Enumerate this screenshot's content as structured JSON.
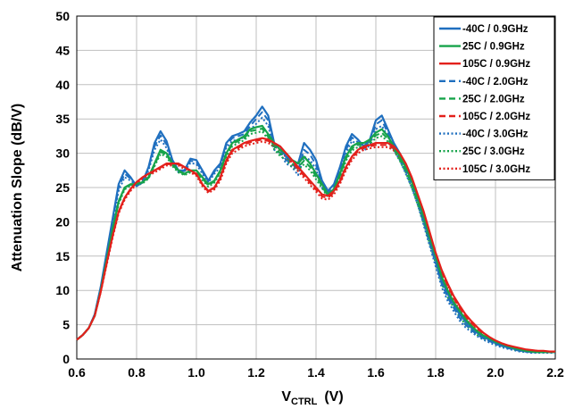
{
  "chart_data": {
    "type": "line",
    "title": "",
    "xlabel": "V",
    "xlabel_sub": "CTRL",
    "xlabel_unit": "(V)",
    "ylabel": "Attenuation Slope  (dB/V)",
    "xlim": [
      0.6,
      2.2
    ],
    "ylim": [
      0,
      50
    ],
    "x_ticks": [
      "0.6",
      "0.8",
      "1.0",
      "1.2",
      "1.4",
      "1.6",
      "1.8",
      "2.0",
      "2.2"
    ],
    "y_ticks": [
      "0",
      "5",
      "10",
      "15",
      "20",
      "25",
      "30",
      "35",
      "40",
      "45",
      "50"
    ],
    "grid": true,
    "legend_position": "top-right",
    "colors": {
      "m40": "#1f6fbf",
      "p25": "#16a34a",
      "p105": "#e3201b"
    },
    "x": [
      0.6,
      0.62,
      0.64,
      0.66,
      0.68,
      0.7,
      0.72,
      0.74,
      0.76,
      0.78,
      0.8,
      0.82,
      0.84,
      0.86,
      0.88,
      0.9,
      0.92,
      0.94,
      0.96,
      0.98,
      1.0,
      1.02,
      1.04,
      1.06,
      1.08,
      1.1,
      1.12,
      1.14,
      1.16,
      1.18,
      1.2,
      1.22,
      1.24,
      1.26,
      1.28,
      1.3,
      1.32,
      1.34,
      1.36,
      1.38,
      1.4,
      1.42,
      1.44,
      1.46,
      1.48,
      1.5,
      1.52,
      1.54,
      1.56,
      1.58,
      1.6,
      1.62,
      1.64,
      1.66,
      1.68,
      1.7,
      1.72,
      1.74,
      1.76,
      1.78,
      1.8,
      1.82,
      1.84,
      1.86,
      1.88,
      1.9,
      1.92,
      1.94,
      1.96,
      1.98,
      2.0,
      2.02,
      2.04,
      2.06,
      2.08,
      2.1,
      2.12,
      2.14,
      2.16,
      2.18,
      2.2
    ],
    "series": [
      {
        "name": "-40C /  0.9GHz",
        "color_key": "m40",
        "dash": "solid",
        "values": [
          2.8,
          3.5,
          4.5,
          6.5,
          10.5,
          15.5,
          20.5,
          25.5,
          27.5,
          26.5,
          25.2,
          25.8,
          28.0,
          31.5,
          33.2,
          31.8,
          29.0,
          27.5,
          27.5,
          29.2,
          29.0,
          27.5,
          26.0,
          27.5,
          28.5,
          31.5,
          32.5,
          32.8,
          33.2,
          34.5,
          35.5,
          36.8,
          35.5,
          31.5,
          31.0,
          29.5,
          29.0,
          28.5,
          31.5,
          30.5,
          29.0,
          26.0,
          24.5,
          25.5,
          28.0,
          31.0,
          32.8,
          32.0,
          31.0,
          32.0,
          34.8,
          35.5,
          33.5,
          31.5,
          30.0,
          28.0,
          26.0,
          23.5,
          20.5,
          17.5,
          14.5,
          11.5,
          9.5,
          8.0,
          6.5,
          5.5,
          4.5,
          3.8,
          3.2,
          2.8,
          2.3,
          2.0,
          1.7,
          1.5,
          1.3,
          1.1,
          1.0,
          1.0,
          1.0,
          1.0,
          1.0
        ]
      },
      {
        "name": "25C /  0.9GHz",
        "color_key": "p25",
        "dash": "solid",
        "values": [
          2.8,
          3.5,
          4.5,
          6.3,
          10.0,
          14.5,
          19.0,
          23.0,
          25.0,
          25.5,
          25.5,
          25.8,
          26.5,
          28.5,
          30.5,
          30.0,
          28.5,
          27.5,
          27.0,
          27.5,
          27.5,
          26.5,
          25.5,
          26.0,
          27.5,
          30.0,
          31.5,
          32.0,
          32.5,
          33.5,
          33.8,
          34.0,
          32.8,
          31.5,
          30.5,
          30.0,
          29.0,
          28.5,
          29.5,
          28.5,
          27.0,
          25.5,
          24.0,
          24.8,
          27.0,
          29.5,
          31.0,
          31.5,
          31.5,
          32.0,
          33.0,
          33.5,
          32.5,
          31.0,
          29.5,
          28.0,
          26.0,
          23.5,
          20.8,
          17.8,
          15.0,
          12.0,
          10.0,
          8.3,
          7.0,
          5.8,
          4.8,
          4.0,
          3.4,
          3.0,
          2.5,
          2.2,
          1.9,
          1.6,
          1.4,
          1.2,
          1.1,
          1.0,
          1.0,
          1.0,
          1.0
        ]
      },
      {
        "name": "105C /  0.9GHz",
        "color_key": "p105",
        "dash": "solid",
        "values": [
          2.8,
          3.5,
          4.5,
          6.3,
          9.8,
          14.0,
          18.0,
          21.5,
          23.5,
          24.8,
          25.8,
          26.5,
          27.0,
          27.5,
          28.0,
          28.5,
          28.5,
          28.5,
          28.0,
          27.5,
          27.0,
          25.5,
          24.5,
          25.0,
          26.5,
          29.0,
          30.5,
          31.0,
          31.5,
          31.8,
          32.0,
          32.2,
          32.0,
          31.5,
          31.0,
          30.0,
          29.0,
          28.0,
          27.0,
          26.0,
          25.0,
          24.0,
          23.8,
          24.5,
          26.0,
          28.0,
          29.5,
          30.5,
          31.0,
          31.2,
          31.5,
          31.5,
          31.5,
          31.0,
          30.0,
          28.5,
          26.5,
          24.0,
          21.5,
          18.5,
          15.5,
          13.0,
          11.0,
          9.2,
          7.8,
          6.5,
          5.5,
          4.6,
          3.8,
          3.2,
          2.7,
          2.3,
          2.0,
          1.8,
          1.6,
          1.4,
          1.3,
          1.2,
          1.2,
          1.1,
          1.1
        ]
      },
      {
        "name": "-40C /  2.0GHz",
        "color_key": "m40",
        "dash": "dashed",
        "values": [
          2.8,
          3.5,
          4.5,
          6.5,
          10.4,
          15.3,
          20.2,
          25.0,
          27.0,
          26.3,
          25.3,
          25.8,
          27.8,
          31.0,
          32.6,
          31.3,
          28.8,
          27.4,
          27.4,
          28.9,
          28.7,
          27.3,
          25.9,
          27.3,
          28.3,
          31.2,
          32.2,
          32.5,
          32.8,
          34.0,
          35.0,
          36.0,
          34.8,
          31.0,
          30.5,
          29.0,
          28.5,
          27.5,
          30.5,
          29.8,
          28.3,
          25.5,
          24.2,
          25.2,
          27.6,
          30.5,
          32.3,
          31.6,
          30.7,
          31.6,
          34.2,
          34.8,
          33.0,
          31.0,
          29.5,
          27.5,
          25.5,
          23.0,
          20.0,
          17.0,
          14.0,
          11.0,
          9.0,
          7.5,
          6.0,
          5.0,
          4.2,
          3.5,
          3.0,
          2.6,
          2.2,
          1.9,
          1.6,
          1.4,
          1.2,
          1.1,
          1.0,
          1.0,
          1.0,
          1.0,
          1.0
        ]
      },
      {
        "name": "25C /  2.0GHz",
        "color_key": "p25",
        "dash": "dashed",
        "values": [
          2.8,
          3.5,
          4.5,
          6.3,
          10.0,
          14.4,
          18.8,
          22.8,
          24.9,
          25.4,
          25.4,
          25.7,
          26.4,
          28.3,
          30.2,
          29.8,
          28.3,
          27.4,
          26.9,
          27.4,
          27.3,
          26.3,
          25.3,
          25.9,
          27.3,
          29.8,
          31.3,
          31.8,
          32.2,
          33.2,
          33.4,
          33.6,
          32.4,
          31.0,
          30.0,
          29.5,
          28.5,
          28.0,
          28.9,
          28.0,
          26.6,
          25.2,
          23.8,
          24.6,
          26.7,
          29.2,
          30.7,
          31.2,
          31.2,
          31.7,
          32.6,
          33.0,
          32.1,
          30.7,
          29.2,
          27.6,
          25.5,
          23.0,
          20.3,
          17.3,
          14.5,
          11.5,
          9.5,
          7.9,
          6.6,
          5.4,
          4.5,
          3.7,
          3.2,
          2.8,
          2.4,
          2.1,
          1.8,
          1.5,
          1.3,
          1.2,
          1.1,
          1.0,
          1.0,
          1.0,
          1.0
        ]
      },
      {
        "name": "105C /  2.0GHz",
        "color_key": "p105",
        "dash": "dashed",
        "values": [
          2.8,
          3.5,
          4.5,
          6.3,
          9.8,
          13.9,
          17.9,
          21.4,
          23.4,
          24.7,
          25.7,
          26.4,
          26.9,
          27.4,
          27.9,
          28.4,
          28.4,
          28.4,
          27.9,
          27.4,
          26.9,
          25.4,
          24.4,
          24.9,
          26.3,
          28.8,
          30.3,
          30.8,
          31.3,
          31.6,
          31.8,
          32.0,
          31.8,
          31.3,
          30.7,
          29.7,
          28.7,
          27.7,
          26.7,
          25.7,
          24.7,
          23.7,
          23.5,
          24.3,
          25.8,
          27.8,
          29.3,
          30.3,
          30.8,
          31.0,
          31.2,
          31.2,
          31.2,
          30.7,
          29.7,
          28.2,
          26.2,
          23.7,
          21.2,
          18.2,
          15.2,
          12.7,
          10.7,
          8.9,
          7.5,
          6.2,
          5.2,
          4.4,
          3.6,
          3.0,
          2.6,
          2.2,
          1.9,
          1.7,
          1.5,
          1.3,
          1.2,
          1.2,
          1.1,
          1.1,
          1.1
        ]
      },
      {
        "name": "-40C /  3.0GHz",
        "color_key": "m40",
        "dash": "dotted",
        "values": [
          2.8,
          3.5,
          4.5,
          6.5,
          10.3,
          15.0,
          19.8,
          24.5,
          26.5,
          26.0,
          25.3,
          25.7,
          27.5,
          30.5,
          32.0,
          30.8,
          28.5,
          27.2,
          27.3,
          28.6,
          28.4,
          27.0,
          25.7,
          27.0,
          28.0,
          30.8,
          31.8,
          32.0,
          32.3,
          33.4,
          34.3,
          35.2,
          34.0,
          30.5,
          30.0,
          28.5,
          28.0,
          26.8,
          29.5,
          29.0,
          27.7,
          25.0,
          23.8,
          24.8,
          27.2,
          30.0,
          31.8,
          31.2,
          30.3,
          31.2,
          33.5,
          34.0,
          32.5,
          30.5,
          29.0,
          27.0,
          25.0,
          22.5,
          19.5,
          16.5,
          13.5,
          10.5,
          8.5,
          7.0,
          5.6,
          4.6,
          3.9,
          3.3,
          2.8,
          2.4,
          2.0,
          1.7,
          1.5,
          1.3,
          1.1,
          1.0,
          0.9,
          0.9,
          0.9,
          0.9,
          0.9
        ]
      },
      {
        "name": "25C /  3.0GHz",
        "color_key": "p25",
        "dash": "dotted",
        "values": [
          2.8,
          3.5,
          4.5,
          6.3,
          9.9,
          14.2,
          18.6,
          22.6,
          24.7,
          25.3,
          25.3,
          25.6,
          26.3,
          28.1,
          29.9,
          29.5,
          28.1,
          27.2,
          26.8,
          27.2,
          27.1,
          26.1,
          25.1,
          25.7,
          27.1,
          29.5,
          31.0,
          31.5,
          31.9,
          32.8,
          33.0,
          33.2,
          32.0,
          30.6,
          29.6,
          29.0,
          28.0,
          27.5,
          28.4,
          27.5,
          26.2,
          24.9,
          23.6,
          24.4,
          26.4,
          28.9,
          30.4,
          30.9,
          30.9,
          31.4,
          32.2,
          32.5,
          31.7,
          30.4,
          28.9,
          27.2,
          25.0,
          22.5,
          19.8,
          16.8,
          14.0,
          11.0,
          9.0,
          7.5,
          6.2,
          5.0,
          4.2,
          3.5,
          3.0,
          2.6,
          2.2,
          1.9,
          1.6,
          1.4,
          1.2,
          1.1,
          1.0,
          1.0,
          1.0,
          1.0,
          1.0
        ]
      },
      {
        "name": "105C /  3.0GHz",
        "color_key": "p105",
        "dash": "dotted",
        "values": [
          2.8,
          3.5,
          4.5,
          6.3,
          9.7,
          13.7,
          17.7,
          21.2,
          23.2,
          24.5,
          25.5,
          26.2,
          26.7,
          27.2,
          27.7,
          28.2,
          28.2,
          28.2,
          27.7,
          27.2,
          26.7,
          25.2,
          24.2,
          24.7,
          26.0,
          28.5,
          30.0,
          30.5,
          31.0,
          31.3,
          31.5,
          31.7,
          31.5,
          31.0,
          30.4,
          29.4,
          28.4,
          27.4,
          26.4,
          25.4,
          24.4,
          23.4,
          23.2,
          24.0,
          25.5,
          27.5,
          29.0,
          30.0,
          30.5,
          30.7,
          30.9,
          30.9,
          30.9,
          30.4,
          29.4,
          27.9,
          25.9,
          23.4,
          20.9,
          17.9,
          14.9,
          12.4,
          10.4,
          8.6,
          7.2,
          6.0,
          5.0,
          4.2,
          3.4,
          2.9,
          2.5,
          2.1,
          1.8,
          1.6,
          1.4,
          1.3,
          1.2,
          1.1,
          1.1,
          1.1,
          1.1
        ]
      }
    ]
  }
}
